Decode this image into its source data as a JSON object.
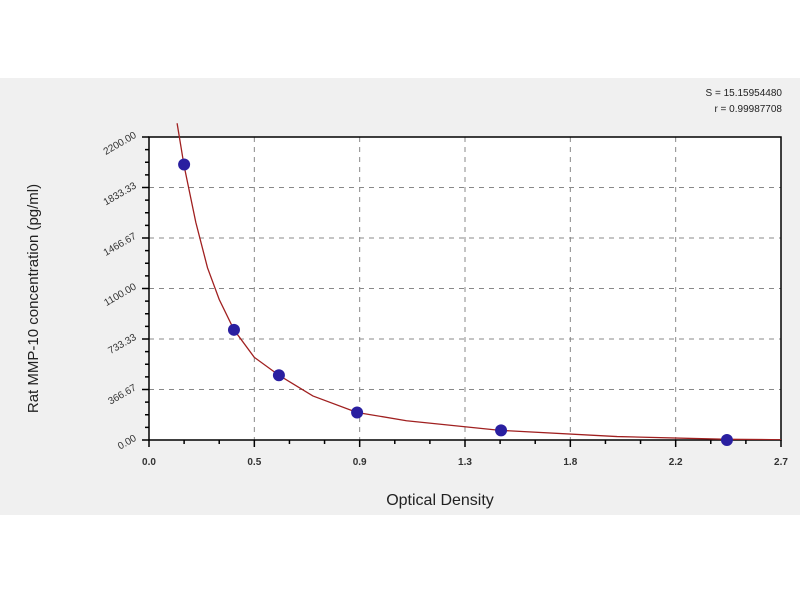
{
  "chart_data": {
    "type": "scatter",
    "xlabel": "Optical Density",
    "ylabel": "Rat MMP-10  concentration (pg/ml)",
    "xlim": [
      0,
      2.7
    ],
    "ylim": [
      0,
      2200
    ],
    "x_tick_labels": [
      "0.0",
      "0.5",
      "0.9",
      "1.3",
      "1.8",
      "2.2",
      "2.7"
    ],
    "y_tick_labels": [
      "0.00",
      "366.67",
      "733.33",
      "1100.00",
      "1466.67",
      "1833.33",
      "2200.00"
    ],
    "grid": true,
    "annotations": [
      "S = 15.15954480",
      "r = 0.99987708"
    ],
    "points": {
      "x": [
        0.15,
        0.363,
        0.555,
        0.889,
        1.504,
        2.469
      ],
      "y": [
        2000,
        800,
        470,
        200,
        70,
        0
      ],
      "color": "#2a1fa0"
    },
    "fit_curve": {
      "x": [
        0.12,
        0.15,
        0.2,
        0.25,
        0.3,
        0.363,
        0.45,
        0.555,
        0.7,
        0.889,
        1.1,
        1.5,
        2.0,
        2.47,
        2.7
      ],
      "y": [
        2300,
        1990,
        1580,
        1250,
        1020,
        800,
        600,
        470,
        320,
        200,
        140,
        70,
        25,
        5,
        2
      ],
      "color": "#a02020"
    }
  }
}
